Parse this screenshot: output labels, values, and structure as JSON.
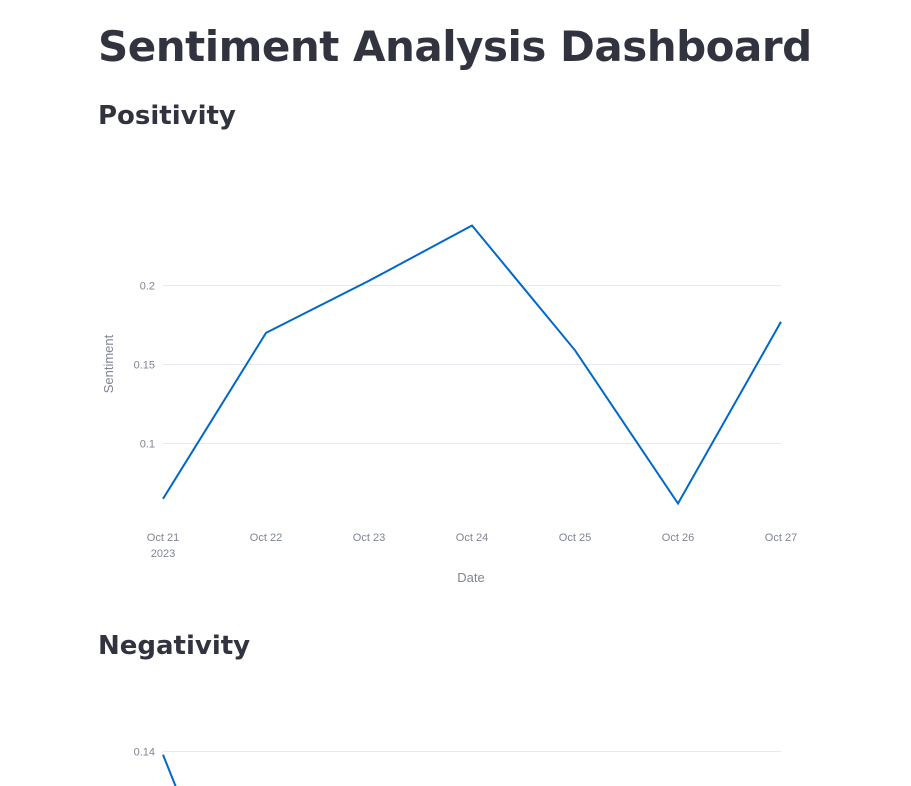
{
  "page": {
    "title": "Sentiment Analysis Dashboard"
  },
  "sections": {
    "positivity": {
      "title": "Positivity"
    },
    "negativity": {
      "title": "Negativity"
    }
  },
  "colors": {
    "series": "#0068c9",
    "grid": "#e6e9ef",
    "axis_text": "#808495",
    "title_text": "#31333f"
  },
  "chart_data": [
    {
      "type": "line",
      "title": "Positivity",
      "xlabel": "Date",
      "ylabel": "Sentiment",
      "x": [
        "2023-10-21",
        "2023-10-22",
        "2023-10-23",
        "2023-10-24",
        "2023-10-25",
        "2023-10-26",
        "2023-10-27"
      ],
      "x_tick_labels": [
        "Oct 21",
        "Oct 22",
        "Oct 23",
        "Oct 24",
        "Oct 25",
        "Oct 26",
        "Oct 27"
      ],
      "x_year_label": "2023",
      "series": [
        {
          "values": [
            0.065,
            0.17,
            0.203,
            0.238,
            0.159,
            0.062,
            0.177
          ]
        }
      ],
      "y_ticks": [
        0.1,
        0.15,
        0.2
      ],
      "y_tick_labels": [
        "0.1",
        "0.15",
        "0.2"
      ],
      "grid": true
    },
    {
      "type": "line",
      "title": "Negativity",
      "xlabel": "",
      "ylabel": "",
      "x": [
        "2023-10-21"
      ],
      "series": [
        {
          "values": [
            0.138
          ]
        }
      ],
      "y_ticks": [
        0.14
      ],
      "y_tick_labels": [
        "0.14"
      ],
      "grid": true,
      "partially_visible": true
    }
  ]
}
